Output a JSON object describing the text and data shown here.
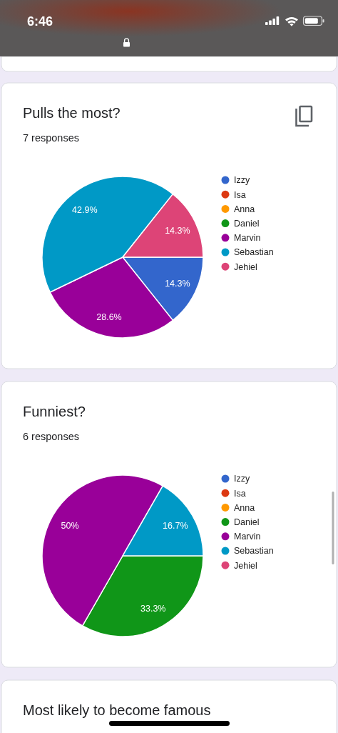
{
  "chart_data": [
    {
      "type": "other",
      "annotations": [
        "6:46"
      ]
    },
    {
      "type": "pie",
      "title": "Pulls the most?",
      "subtitle": "7 responses",
      "categories": [
        "Izzy",
        "Isa",
        "Anna",
        "Daniel",
        "Marvin",
        "Sebastian",
        "Jehiel"
      ],
      "values": [
        14.3,
        0,
        0,
        0,
        28.6,
        42.9,
        14.3
      ],
      "colors": [
        "#3366cc",
        "#dc3912",
        "#ff9900",
        "#109618",
        "#990099",
        "#0099c6",
        "#dd4477"
      ],
      "value_labels": [
        "14.3%",
        null,
        null,
        null,
        "28.6%",
        "42.9%",
        "14.3%"
      ],
      "legend": "right"
    },
    {
      "type": "pie",
      "title": "Funniest?",
      "subtitle": "6 responses",
      "categories": [
        "Izzy",
        "Isa",
        "Anna",
        "Daniel",
        "Marvin",
        "Sebastian",
        "Jehiel"
      ],
      "values": [
        0,
        0,
        0,
        33.3,
        50,
        16.7,
        0
      ],
      "colors": [
        "#3366cc",
        "#dc3912",
        "#ff9900",
        "#109618",
        "#990099",
        "#0099c6",
        "#dd4477"
      ],
      "value_labels": [
        null,
        null,
        null,
        "33.3%",
        "50%",
        "16.7%",
        null
      ],
      "legend": "right"
    },
    {
      "type": "other",
      "title": "Most likely to become famous"
    }
  ]
}
